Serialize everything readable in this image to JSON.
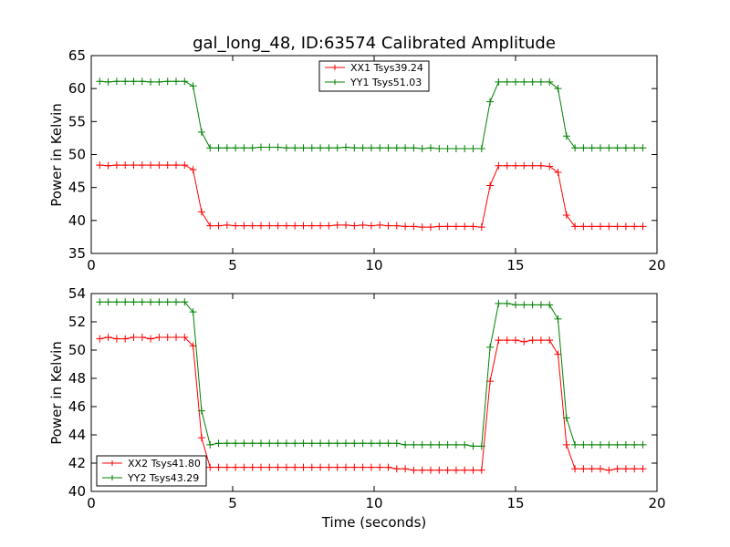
{
  "chart_data": [
    {
      "type": "line",
      "title": "gal_long_48, ID:63574 Calibrated Amplitude",
      "xlabel": "",
      "ylabel": "Power in Kelvin",
      "xlim": [
        0,
        20
      ],
      "ylim": [
        35,
        65
      ],
      "x_ticks": [
        "0",
        "5",
        "10",
        "15",
        "20"
      ],
      "y_ticks": [
        "35",
        "40",
        "45",
        "50",
        "55",
        "60",
        "65"
      ],
      "legend_position": "top-center",
      "grid": false,
      "x": [
        0.3,
        0.6,
        0.9,
        1.2,
        1.5,
        1.8,
        2.1,
        2.4,
        2.7,
        3.0,
        3.3,
        3.6,
        3.9,
        4.2,
        4.5,
        4.8,
        5.1,
        5.4,
        5.7,
        6.0,
        6.3,
        6.6,
        6.9,
        7.2,
        7.5,
        7.8,
        8.1,
        8.4,
        8.7,
        9.0,
        9.3,
        9.6,
        9.9,
        10.2,
        10.5,
        10.8,
        11.1,
        11.4,
        11.7,
        12.0,
        12.3,
        12.6,
        12.9,
        13.2,
        13.5,
        13.8,
        14.1,
        14.4,
        14.7,
        15.0,
        15.3,
        15.6,
        15.9,
        16.2,
        16.5,
        16.8,
        17.1,
        17.4,
        17.7,
        18.0,
        18.3,
        18.6,
        18.9,
        19.2,
        19.5
      ],
      "series": [
        {
          "name": "XX1 Tsys39.24",
          "color": "#ff0000",
          "values": [
            48.4,
            48.3,
            48.4,
            48.4,
            48.4,
            48.4,
            48.4,
            48.4,
            48.4,
            48.4,
            48.4,
            47.7,
            41.3,
            39.2,
            39.2,
            39.3,
            39.2,
            39.2,
            39.2,
            39.2,
            39.2,
            39.2,
            39.2,
            39.2,
            39.2,
            39.2,
            39.2,
            39.2,
            39.3,
            39.3,
            39.2,
            39.3,
            39.2,
            39.3,
            39.2,
            39.2,
            39.1,
            39.1,
            39.0,
            39.0,
            39.1,
            39.1,
            39.1,
            39.1,
            39.1,
            39.0,
            45.3,
            48.3,
            48.3,
            48.3,
            48.3,
            48.3,
            48.3,
            48.2,
            47.3,
            40.8,
            39.1,
            39.1,
            39.1,
            39.1,
            39.1,
            39.1,
            39.1,
            39.1,
            39.1
          ]
        },
        {
          "name": "YY1 Tsys51.03",
          "color": "#008000",
          "values": [
            61.1,
            61.0,
            61.1,
            61.1,
            61.1,
            61.1,
            61.0,
            61.0,
            61.1,
            61.1,
            61.1,
            60.4,
            53.4,
            51.0,
            51.0,
            51.0,
            51.0,
            51.0,
            51.0,
            51.1,
            51.1,
            51.1,
            51.0,
            51.0,
            51.0,
            51.0,
            51.0,
            51.0,
            51.0,
            51.1,
            51.0,
            51.0,
            51.0,
            51.0,
            51.0,
            51.0,
            51.0,
            51.0,
            50.9,
            51.0,
            50.9,
            50.9,
            50.9,
            50.9,
            50.9,
            50.9,
            58.0,
            61.0,
            61.0,
            61.0,
            61.0,
            61.0,
            61.0,
            61.0,
            60.0,
            52.8,
            51.0,
            51.0,
            51.0,
            51.0,
            51.0,
            51.0,
            51.0,
            51.0,
            51.0
          ]
        }
      ]
    },
    {
      "type": "line",
      "title": "",
      "xlabel": "Time (seconds)",
      "ylabel": "Power in Kelvin",
      "xlim": [
        0,
        20
      ],
      "ylim": [
        40,
        54
      ],
      "x_ticks": [
        "0",
        "5",
        "10",
        "15",
        "20"
      ],
      "y_ticks": [
        "40",
        "42",
        "44",
        "46",
        "48",
        "50",
        "52",
        "54"
      ],
      "legend_position": "lower-left",
      "grid": false,
      "x": [
        0.3,
        0.6,
        0.9,
        1.2,
        1.5,
        1.8,
        2.1,
        2.4,
        2.7,
        3.0,
        3.3,
        3.6,
        3.9,
        4.2,
        4.5,
        4.8,
        5.1,
        5.4,
        5.7,
        6.0,
        6.3,
        6.6,
        6.9,
        7.2,
        7.5,
        7.8,
        8.1,
        8.4,
        8.7,
        9.0,
        9.3,
        9.6,
        9.9,
        10.2,
        10.5,
        10.8,
        11.1,
        11.4,
        11.7,
        12.0,
        12.3,
        12.6,
        12.9,
        13.2,
        13.5,
        13.8,
        14.1,
        14.4,
        14.7,
        15.0,
        15.3,
        15.6,
        15.9,
        16.2,
        16.5,
        16.8,
        17.1,
        17.4,
        17.7,
        18.0,
        18.3,
        18.6,
        18.9,
        19.2,
        19.5
      ],
      "series": [
        {
          "name": "XX2 Tsys41.80",
          "color": "#ff0000",
          "values": [
            50.8,
            50.9,
            50.8,
            50.8,
            50.9,
            50.9,
            50.8,
            50.9,
            50.9,
            50.9,
            50.9,
            50.3,
            43.8,
            41.7,
            41.7,
            41.7,
            41.7,
            41.7,
            41.7,
            41.7,
            41.7,
            41.7,
            41.7,
            41.7,
            41.7,
            41.7,
            41.7,
            41.7,
            41.7,
            41.7,
            41.7,
            41.7,
            41.7,
            41.7,
            41.7,
            41.6,
            41.6,
            41.5,
            41.5,
            41.5,
            41.5,
            41.5,
            41.5,
            41.5,
            41.5,
            41.5,
            47.8,
            50.7,
            50.7,
            50.7,
            50.6,
            50.7,
            50.7,
            50.7,
            49.7,
            43.3,
            41.6,
            41.6,
            41.6,
            41.6,
            41.5,
            41.6,
            41.6,
            41.6,
            41.6
          ]
        },
        {
          "name": "YY2 Tsys43.29",
          "color": "#008000",
          "values": [
            53.4,
            53.4,
            53.4,
            53.4,
            53.4,
            53.4,
            53.4,
            53.4,
            53.4,
            53.4,
            53.4,
            52.7,
            45.7,
            43.3,
            43.4,
            43.4,
            43.4,
            43.4,
            43.4,
            43.4,
            43.4,
            43.4,
            43.4,
            43.4,
            43.4,
            43.4,
            43.4,
            43.4,
            43.4,
            43.4,
            43.4,
            43.4,
            43.4,
            43.4,
            43.4,
            43.4,
            43.3,
            43.3,
            43.3,
            43.3,
            43.3,
            43.3,
            43.3,
            43.3,
            43.2,
            43.2,
            50.2,
            53.3,
            53.3,
            53.2,
            53.2,
            53.2,
            53.2,
            53.2,
            52.2,
            45.2,
            43.3,
            43.3,
            43.3,
            43.3,
            43.3,
            43.3,
            43.3,
            43.3,
            43.3
          ]
        }
      ]
    }
  ]
}
